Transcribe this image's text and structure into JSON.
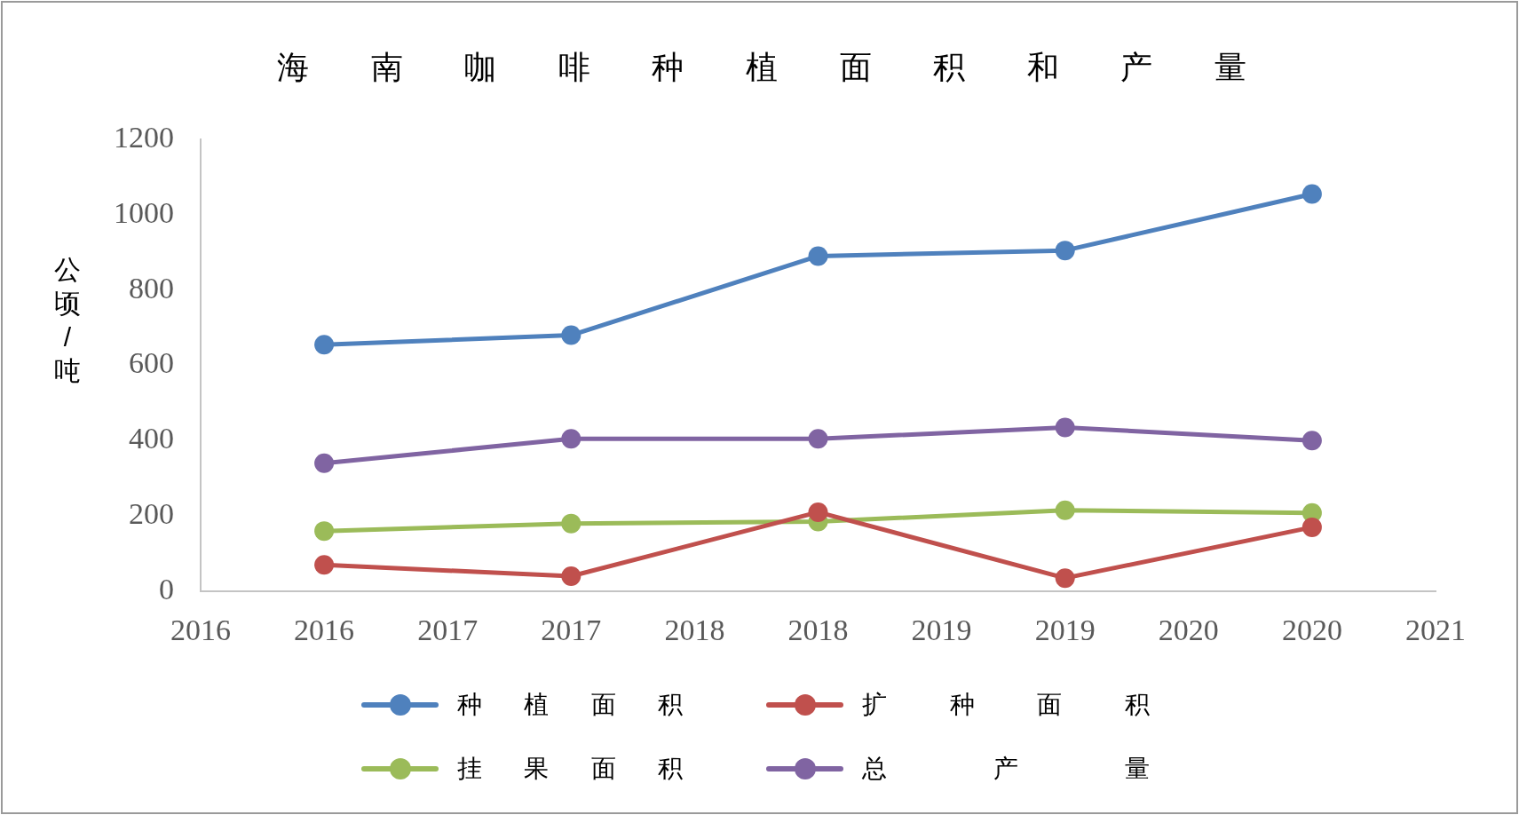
{
  "chart_data": {
    "type": "line",
    "title": "海南咖啡种植面积和产量",
    "ylabel": "公顷/吨",
    "x": [
      2016,
      2017,
      2018,
      2019,
      2020
    ],
    "series": [
      {
        "name": "种植面积",
        "color": "#4f81bd",
        "values": [
          655,
          680,
          890,
          905,
          1055
        ]
      },
      {
        "name": "扩种面积",
        "color": "#c0504d",
        "values": [
          70,
          40,
          210,
          35,
          170
        ]
      },
      {
        "name": "挂果面积",
        "color": "#9bbb59",
        "values": [
          160,
          180,
          185,
          215,
          208
        ]
      },
      {
        "name": "总产量",
        "color": "#8064a2",
        "values": [
          340,
          405,
          405,
          435,
          400
        ]
      }
    ],
    "xlim": [
      2015.5,
      2020.5
    ],
    "xticks": [
      {
        "value": 2015.5,
        "label": "2016"
      },
      2016,
      {
        "value": 2016.5,
        "label": "2017"
      },
      2017,
      {
        "value": 2017.5,
        "label": "2018"
      },
      2018,
      {
        "value": 2018.5,
        "label": "2019"
      },
      2019,
      {
        "value": 2019.5,
        "label": "2020"
      },
      2020,
      {
        "value": 2020.5,
        "label": "2021"
      }
    ],
    "ylim": [
      0,
      1200
    ],
    "yticks": [
      0,
      200,
      400,
      600,
      800,
      1000,
      1200
    ],
    "grid": false,
    "legend": "bottom",
    "marker": "circle",
    "line_style": "solid"
  }
}
